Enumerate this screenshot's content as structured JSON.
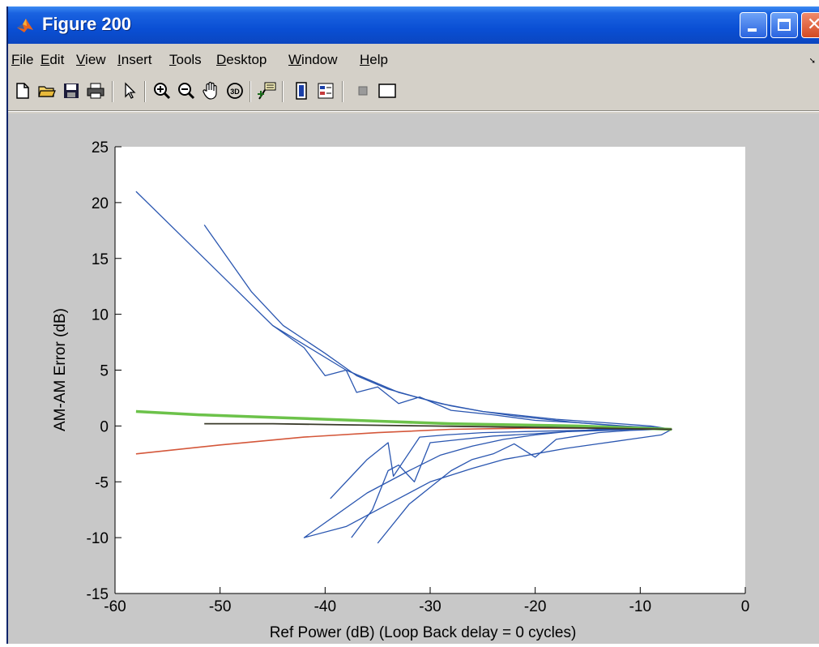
{
  "window": {
    "title": "Figure 200",
    "icon": "matlab-logo-icon"
  },
  "title_buttons": [
    "minimize-icon",
    "maximize-icon",
    "close-icon"
  ],
  "menu": {
    "items": [
      {
        "label": "File",
        "ul": "F",
        "rest": "ile"
      },
      {
        "label": "Edit",
        "ul": "E",
        "rest": "dit"
      },
      {
        "label": "View",
        "ul": "V",
        "rest": "iew"
      },
      {
        "label": "Insert",
        "ul": "I",
        "rest": "nsert"
      },
      {
        "label": "Tools",
        "ul": "T",
        "rest": "ools"
      },
      {
        "label": "Desktop",
        "ul": "D",
        "rest": "esktop"
      },
      {
        "label": "Window",
        "ul": "W",
        "rest": "indow"
      },
      {
        "label": "Help",
        "ul": "H",
        "rest": "elp"
      }
    ]
  },
  "toolbar": {
    "buttons": [
      "new-file-icon",
      "open-folder-icon",
      "save-icon",
      "print-icon",
      "pointer-icon",
      "zoom-in-icon",
      "zoom-out-icon",
      "pan-hand-icon",
      "rotate-3d-icon",
      "data-cursor-icon",
      "colorbar-icon",
      "legend-icon",
      "hide-plot-tools-icon",
      "show-plot-tools-icon"
    ]
  },
  "colors": {
    "series_blue": "#2a56b0",
    "series_green": "#6cc24a",
    "series_red": "#d4573a",
    "series_dark": "#3a3a2a"
  },
  "chart_data": {
    "type": "line",
    "title": "",
    "xlabel": "Ref Power (dB)  (Loop Back delay = 0 cycles)",
    "ylabel": "AM-AM Error (dB)",
    "xlim": [
      -60,
      0
    ],
    "ylim": [
      -15,
      25
    ],
    "xticks": [
      -60,
      -50,
      -40,
      -30,
      -20,
      -10,
      0
    ],
    "yticks": [
      -15,
      -10,
      -5,
      0,
      5,
      10,
      15,
      20,
      25
    ],
    "xtick_labels": [
      "-60",
      "-50",
      "-40",
      "-30",
      "-20",
      "-10",
      "0"
    ],
    "ytick_labels": [
      "-15",
      "-10",
      "-5",
      "0",
      "5",
      "10",
      "15",
      "20",
      "25"
    ],
    "grid": false,
    "series": [
      {
        "x": [
          -58.0,
          -45.0,
          -38.0,
          -33.0,
          -29.0,
          -25.0,
          -21.0,
          -18.0,
          -15.0,
          -12.0,
          -9.0,
          -7.0,
          -8.0,
          -11.0,
          -14.0,
          -17.0,
          -20.0,
          -23.0,
          -26.0,
          -30.0,
          -34.0,
          -38.0,
          -42.0,
          -36.0,
          -32.0,
          -29.0,
          -26.0,
          -23.0,
          -20.0,
          -17.0,
          -14.0,
          -11.0,
          -9.0,
          -7.0
        ],
        "y": [
          21.0,
          9.0,
          5.0,
          3.0,
          2.0,
          1.3,
          0.9,
          0.6,
          0.4,
          0.2,
          0.0,
          -0.3,
          -0.8,
          -1.2,
          -1.6,
          -2.0,
          -2.5,
          -3.0,
          -3.8,
          -5.0,
          -7.0,
          -9.0,
          -10.0,
          -6.0,
          -4.0,
          -2.6,
          -1.8,
          -1.2,
          -0.8,
          -0.5,
          -0.3,
          -0.2,
          -0.2,
          -0.3
        ]
      },
      {
        "x": [
          -51.5,
          -47.0,
          -44.0,
          -40.0,
          -37.0,
          -34.0,
          -31.0,
          -28.0,
          -25.0,
          -22.0,
          -19.0,
          -16.0,
          -13.0,
          -10.0,
          -7.0
        ],
        "y": [
          18.0,
          12.0,
          9.0,
          6.5,
          4.5,
          3.3,
          2.5,
          1.8,
          1.3,
          0.9,
          0.6,
          0.3,
          0.1,
          -0.1,
          -0.3
        ]
      },
      {
        "x": [
          -45.0,
          -42.0,
          -40.0,
          -38.0,
          -37.0,
          -35.0,
          -33.0,
          -31.0,
          -28.0,
          -24.0,
          -20.0,
          -16.0,
          -12.0,
          -9.0,
          -7.0
        ],
        "y": [
          9.0,
          7.0,
          4.5,
          5.0,
          3.0,
          3.5,
          2.0,
          2.6,
          1.4,
          1.0,
          0.5,
          0.3,
          0.0,
          -0.1,
          -0.3
        ]
      },
      {
        "x": [
          -35.0,
          -32.0,
          -30.0,
          -28.0,
          -26.0,
          -24.0,
          -22.0,
          -20.0,
          -18.0,
          -16.0,
          -14.0,
          -11.0,
          -8.0,
          -7.0
        ],
        "y": [
          -10.5,
          -7.0,
          -5.5,
          -4.0,
          -3.0,
          -2.5,
          -1.6,
          -2.8,
          -1.2,
          -0.9,
          -0.6,
          -0.4,
          -0.3,
          -0.3
        ]
      },
      {
        "x": [
          -37.5,
          -35.5,
          -34.0,
          -33.0,
          -31.5,
          -30.0,
          -27.0,
          -24.0,
          -20.0,
          -17.0,
          -13.0,
          -10.0,
          -7.0
        ],
        "y": [
          -10.0,
          -7.5,
          -4.0,
          -3.5,
          -5.0,
          -1.5,
          -1.2,
          -0.9,
          -0.7,
          -0.5,
          -0.4,
          -0.3,
          -0.3
        ]
      },
      {
        "x": [
          -39.5,
          -37.0,
          -36.0,
          -34.0,
          -33.5,
          -31.0,
          -28.5,
          -25.0,
          -21.0,
          -16.0,
          -11.0,
          -7.0
        ],
        "y": [
          -6.5,
          -4.0,
          -3.0,
          -1.5,
          -4.5,
          -1.0,
          -0.8,
          -0.6,
          -0.5,
          -0.4,
          -0.3,
          -0.3
        ]
      },
      {
        "x": [
          -58.0,
          -52.0,
          -46.0,
          -40.0,
          -34.0,
          -28.0,
          -22.0,
          -16.0,
          -10.0,
          -7.0
        ],
        "y": [
          1.3,
          1.0,
          0.8,
          0.6,
          0.4,
          0.2,
          0.1,
          0.0,
          -0.2,
          -0.3
        ]
      },
      {
        "x": [
          -58.0,
          -50.0,
          -42.0,
          -35.0,
          -28.0,
          -21.0,
          -14.0,
          -7.0
        ],
        "y": [
          -2.5,
          -1.7,
          -1.0,
          -0.6,
          -0.3,
          -0.2,
          -0.2,
          -0.3
        ]
      },
      {
        "x": [
          -51.5,
          -45.0,
          -38.0,
          -30.0,
          -22.0,
          -14.0,
          -7.0
        ],
        "y": [
          0.2,
          0.2,
          0.1,
          0.0,
          -0.1,
          -0.2,
          -0.3
        ]
      }
    ]
  }
}
